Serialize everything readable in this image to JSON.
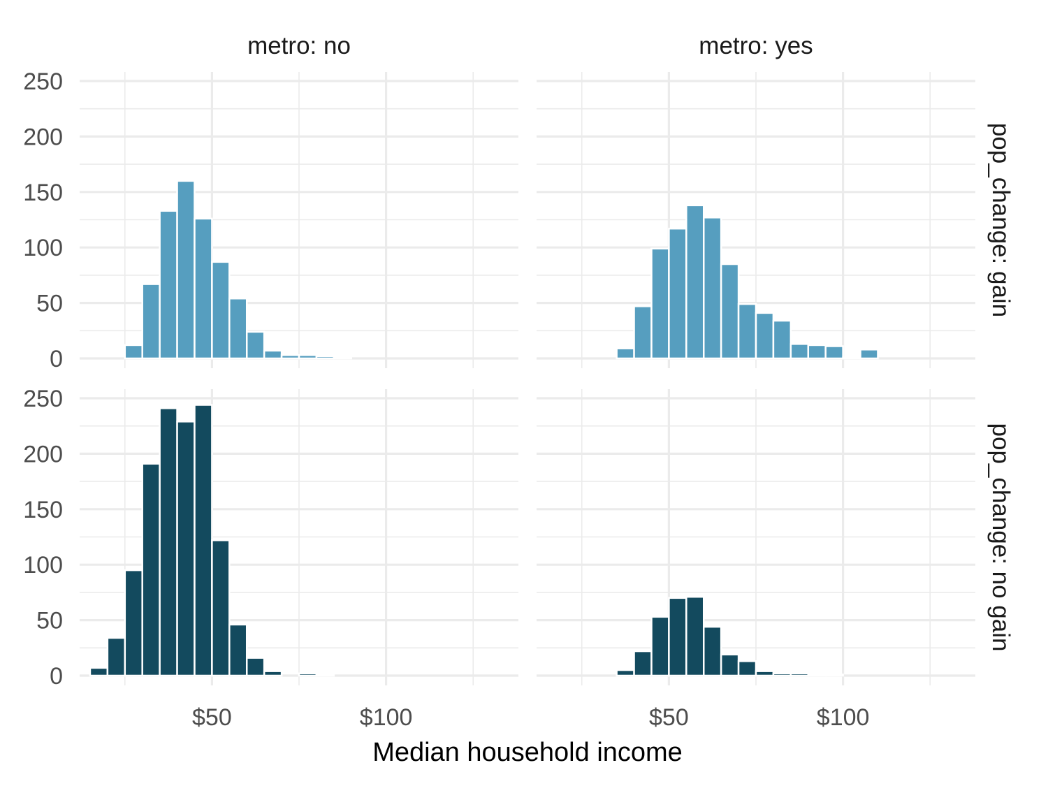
{
  "colors": {
    "gain": "#569ebf",
    "no_gain": "#134a5e",
    "grid": "#ebebeb",
    "background": "#ffffff"
  },
  "chart_data": {
    "type": "bar",
    "subtype": "faceted-histogram",
    "xlabel": "Median household income",
    "ylabel": "",
    "x_tick_labels": [
      "$50",
      "$100"
    ],
    "x_ticks": [
      50,
      100
    ],
    "y_ticks": [
      0,
      50,
      100,
      150,
      200,
      250
    ],
    "xlim": [
      12,
      138
    ],
    "ylim": [
      0,
      250
    ],
    "bin_width": 5,
    "grid": true,
    "columns": [
      {
        "label": "metro: no",
        "value": "no"
      },
      {
        "label": "metro: yes",
        "value": "yes"
      }
    ],
    "rows": [
      {
        "label": "pop_change: gain",
        "value": "gain"
      },
      {
        "label": "pop_change: no gain",
        "value": "no gain"
      }
    ],
    "facets": [
      {
        "metro": "no",
        "pop_change": "gain",
        "bin_centers": [
          17.5,
          22.5,
          27.5,
          32.5,
          37.5,
          42.5,
          47.5,
          52.5,
          57.5,
          62.5,
          67.5,
          72.5,
          77.5,
          82.5,
          87.5,
          92.5,
          97.5,
          102.5,
          107.5,
          112.5,
          117.5,
          122.5,
          127.5,
          132.5
        ],
        "values": [
          0,
          0,
          12,
          67,
          133,
          160,
          126,
          87,
          54,
          24,
          7,
          3,
          3,
          2,
          1,
          0,
          0,
          0,
          0,
          0,
          0,
          0,
          0,
          0
        ]
      },
      {
        "metro": "yes",
        "pop_change": "gain",
        "bin_centers": [
          17.5,
          22.5,
          27.5,
          32.5,
          37.5,
          42.5,
          47.5,
          52.5,
          57.5,
          62.5,
          67.5,
          72.5,
          77.5,
          82.5,
          87.5,
          92.5,
          97.5,
          102.5,
          107.5,
          112.5,
          117.5,
          122.5,
          127.5,
          132.5
        ],
        "values": [
          0,
          0,
          0,
          0,
          9,
          47,
          99,
          117,
          138,
          127,
          85,
          49,
          41,
          34,
          13,
          12,
          11,
          1,
          8,
          0,
          0,
          0,
          0,
          0
        ]
      },
      {
        "metro": "no",
        "pop_change": "no gain",
        "bin_centers": [
          17.5,
          22.5,
          27.5,
          32.5,
          37.5,
          42.5,
          47.5,
          52.5,
          57.5,
          62.5,
          67.5,
          72.5,
          77.5,
          82.5,
          87.5,
          92.5,
          97.5,
          102.5,
          107.5,
          112.5,
          117.5,
          122.5,
          127.5,
          132.5
        ],
        "values": [
          7,
          34,
          95,
          191,
          241,
          229,
          244,
          122,
          46,
          16,
          4,
          0,
          2,
          1,
          0,
          0,
          0,
          0,
          0,
          0,
          0,
          0,
          0,
          0
        ]
      },
      {
        "metro": "yes",
        "pop_change": "no gain",
        "bin_centers": [
          17.5,
          22.5,
          27.5,
          32.5,
          37.5,
          42.5,
          47.5,
          52.5,
          57.5,
          62.5,
          67.5,
          72.5,
          77.5,
          82.5,
          87.5,
          92.5,
          97.5,
          102.5,
          107.5,
          112.5,
          117.5,
          122.5,
          127.5,
          132.5
        ],
        "values": [
          0,
          0,
          0,
          0,
          5,
          22,
          53,
          70,
          71,
          44,
          19,
          13,
          4,
          2,
          2,
          1,
          1,
          0,
          0,
          0,
          0,
          0,
          0,
          0
        ]
      }
    ]
  }
}
